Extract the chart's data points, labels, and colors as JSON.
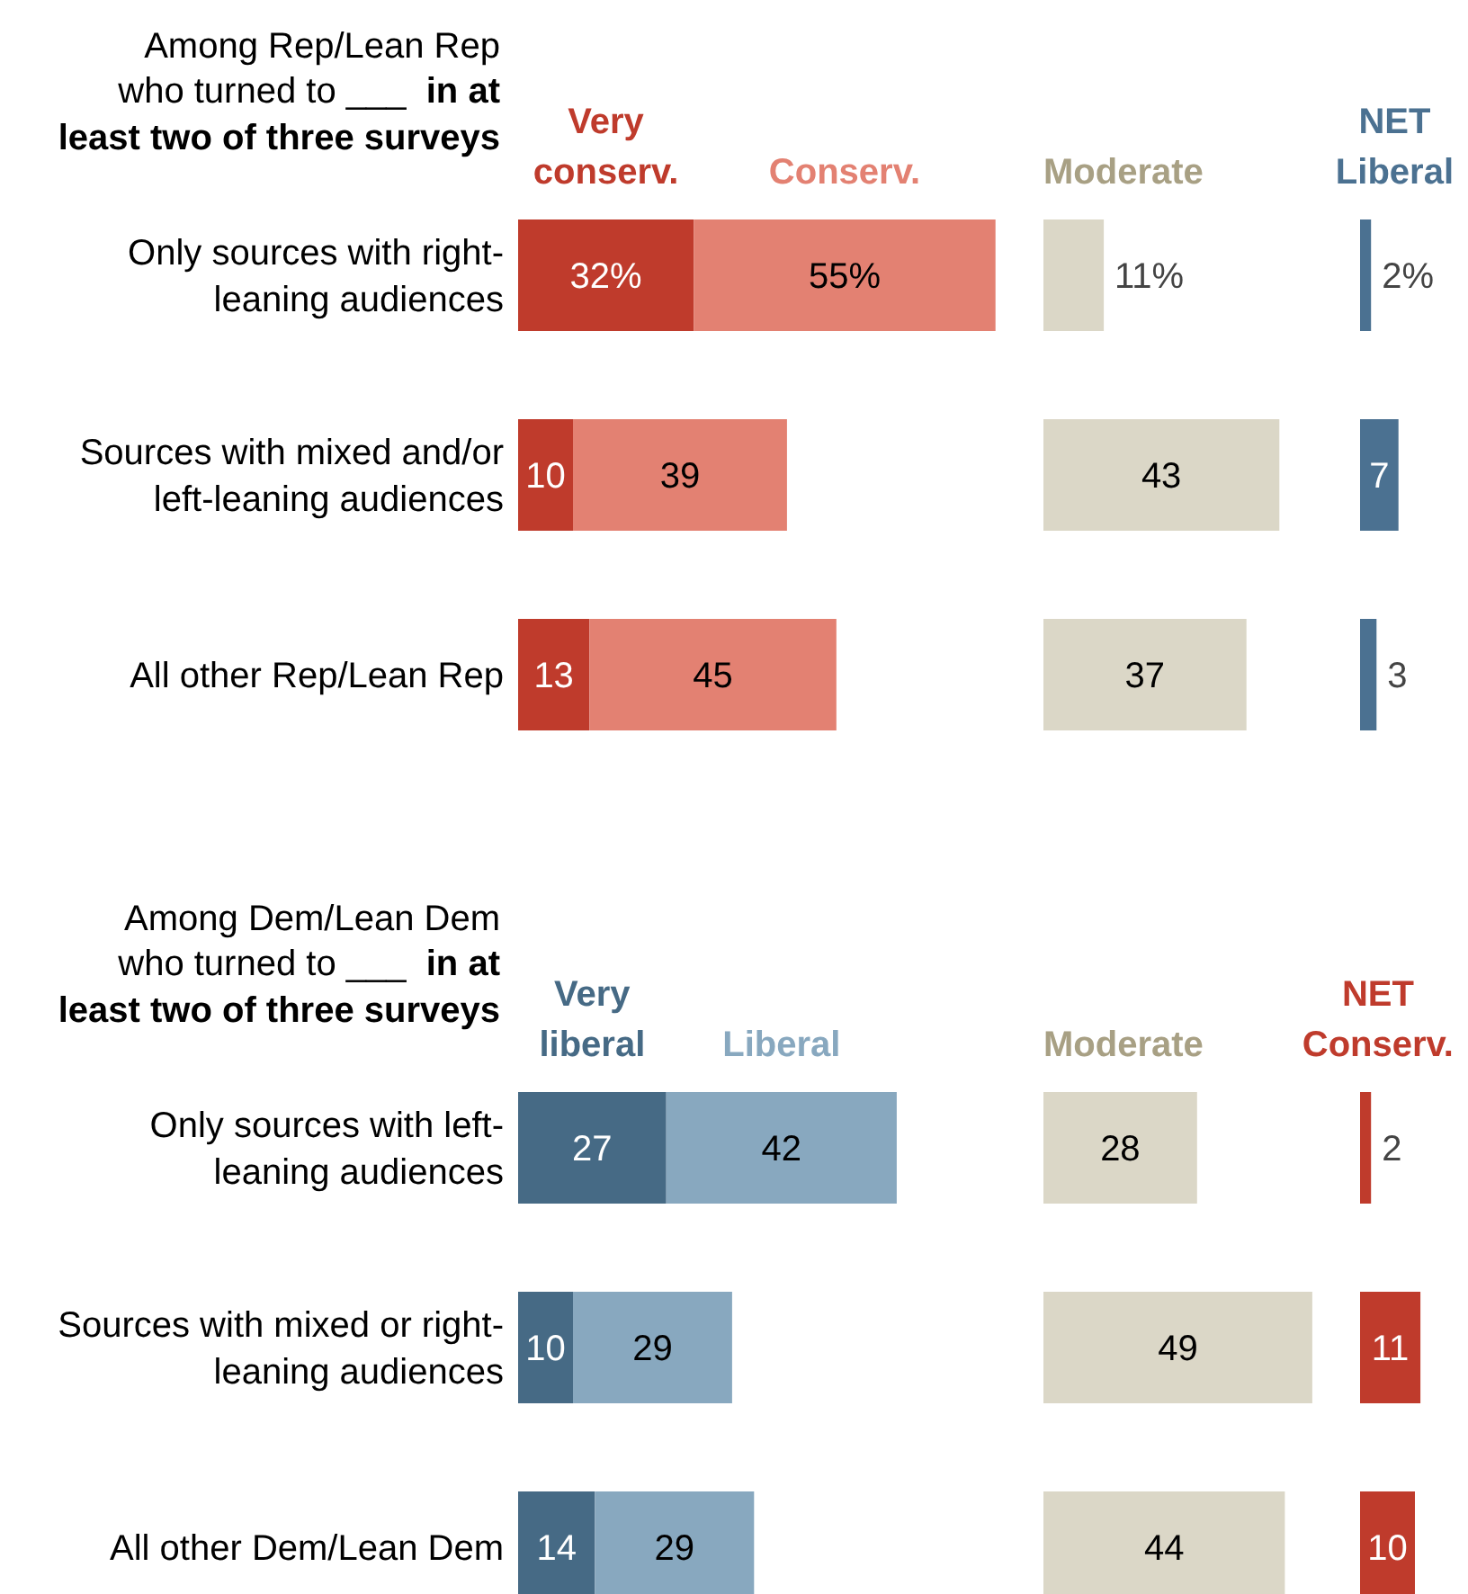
{
  "chart_data": [
    {
      "type": "bar",
      "orientation": "horizontal",
      "stacked": true,
      "title": "Among Rep/Lean Rep who turned to ___",
      "subtitle": "in at least two of three surveys",
      "legend": "top",
      "tick_labels": "y",
      "categories": [
        "Only sources with right-leaning audiences",
        "Sources with mixed and/or left-leaning audiences",
        "All other Rep/Lean Rep"
      ],
      "series": [
        {
          "name": "Very conserv.",
          "color": "#bf3b2c",
          "values": [
            32,
            10,
            13
          ],
          "value_labels": [
            "32%",
            "10",
            "13"
          ]
        },
        {
          "name": "Conserv.",
          "color": "#e38172",
          "values": [
            55,
            39,
            45
          ],
          "value_labels": [
            "55%",
            "39",
            "45"
          ]
        }
      ]
    },
    {
      "type": "bar",
      "orientation": "horizontal",
      "legend": "top",
      "categories": [
        null,
        null,
        null
      ],
      "series": [
        {
          "name": "Moderate",
          "color": "#dbd7c7",
          "values": [
            11,
            43,
            37
          ],
          "value_labels": [
            "11%",
            "43",
            "37"
          ]
        }
      ]
    },
    {
      "type": "bar",
      "orientation": "horizontal",
      "legend": "top",
      "categories": [
        null,
        null,
        null
      ],
      "series": [
        {
          "name": "NET Liberal",
          "color": "#4b7191",
          "values": [
            2,
            7,
            3
          ],
          "value_labels": [
            "2%",
            "7",
            "3"
          ]
        }
      ]
    },
    {
      "type": "bar",
      "orientation": "horizontal",
      "stacked": true,
      "title": "Among Dem/Lean Dem who turned to ___",
      "subtitle": "in at least two of three surveys",
      "legend": "top",
      "tick_labels": "y",
      "categories": [
        "Only sources with left-leaning audiences",
        "Sources with mixed or right-leaning audiences",
        "All other Dem/Lean Dem"
      ],
      "series": [
        {
          "name": "Very liberal",
          "color": "#466a85",
          "values": [
            27,
            10,
            14
          ],
          "value_labels": [
            "27",
            "10",
            "14"
          ]
        },
        {
          "name": "Liberal",
          "color": "#88a8bf",
          "values": [
            42,
            29,
            29
          ],
          "value_labels": [
            "42",
            "29",
            "29"
          ]
        }
      ]
    },
    {
      "type": "bar",
      "orientation": "horizontal",
      "legend": "top",
      "categories": [
        null,
        null,
        null
      ],
      "series": [
        {
          "name": "Moderate",
          "color": "#dbd7c7",
          "values": [
            28,
            49,
            44
          ],
          "value_labels": [
            "28",
            "49",
            "44"
          ]
        }
      ]
    },
    {
      "type": "bar",
      "orientation": "horizontal",
      "legend": "top",
      "categories": [
        null,
        null,
        null
      ],
      "series": [
        {
          "name": "NET Conserv.",
          "color": "#bf3b2c",
          "values": [
            2,
            11,
            10
          ],
          "value_labels": [
            "2",
            "11",
            "10"
          ]
        }
      ]
    }
  ]
}
